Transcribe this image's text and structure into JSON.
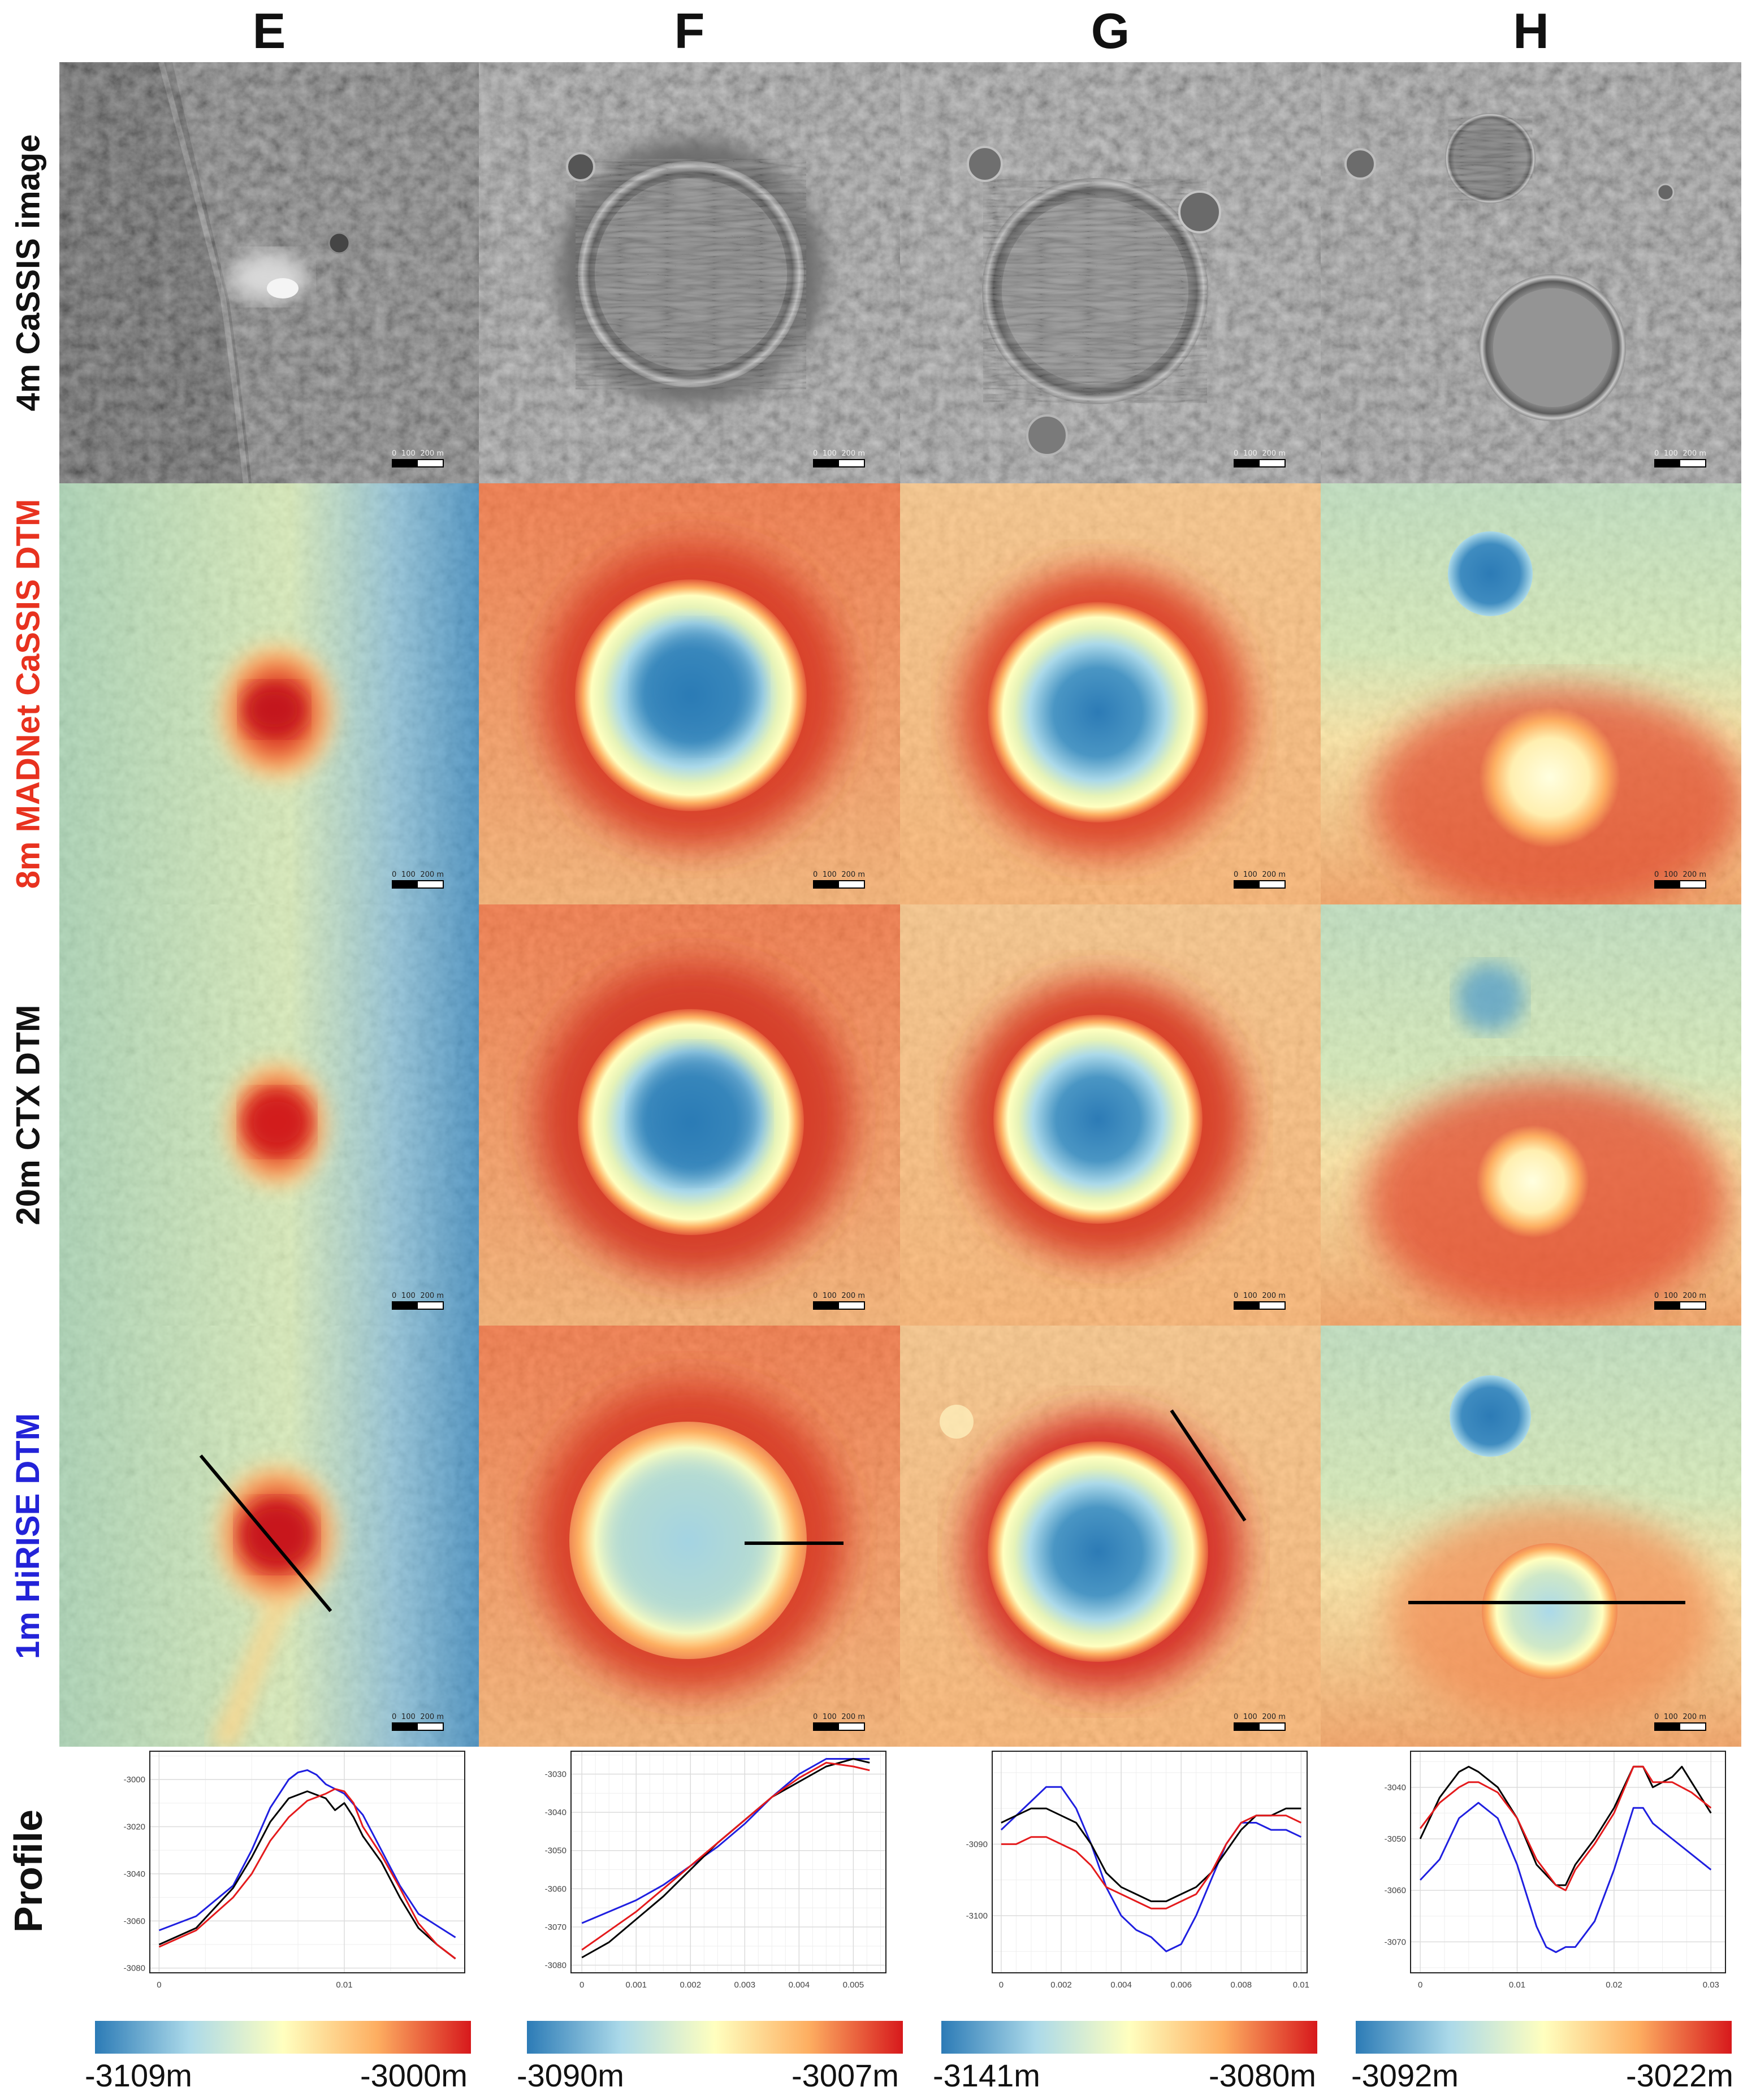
{
  "columns": [
    "E",
    "F",
    "G",
    "H"
  ],
  "rows": [
    {
      "label_prefix": "4m ",
      "label_main": "CaSSIS image",
      "label_color": "#111111"
    },
    {
      "label_prefix": "8m  ",
      "label_main": "MADNet CaSSIS DTM",
      "label_color": "#e8321f"
    },
    {
      "label_prefix": "20m ",
      "label_main": "CTX DTM",
      "label_color": "#111111"
    },
    {
      "label_prefix": "1m ",
      "label_main": "HiRISE DTM",
      "label_color": "#2323d8"
    },
    {
      "label_prefix": "",
      "label_main": "Profile",
      "label_color": "#111111"
    }
  ],
  "scale_bar": {
    "labels": [
      "0",
      "100",
      "200 m"
    ]
  },
  "profile_series_colors": {
    "cassis": "#e41a1c",
    "ctx": "#000000",
    "hirise": "#1f1fe0"
  },
  "colorbar": {
    "stops": [
      "#2c7bb6",
      "#abd9e9",
      "#ffffbf",
      "#fdae61",
      "#d7191c"
    ]
  },
  "chart_data": [
    {
      "type": "line",
      "panel": "E",
      "xlim": [
        -0.0005,
        0.0165
      ],
      "ylim": [
        -3082,
        -2988
      ],
      "xticks": [
        "0",
        "0.01"
      ],
      "xtick_values": [
        0,
        0.01
      ],
      "yticks": [
        "-3000",
        "-3020",
        "-3040",
        "-3060",
        "-3080"
      ],
      "ytick_values": [
        -3000,
        -3020,
        -3040,
        -3060,
        -3080
      ],
      "series": [
        {
          "color": "#1f1fe0",
          "x": [
            0,
            0.002,
            0.004,
            0.005,
            0.006,
            0.007,
            0.0075,
            0.008,
            0.0085,
            0.009,
            0.01,
            0.011,
            0.012,
            0.013,
            0.014,
            0.015,
            0.016
          ],
          "y": [
            -3064,
            -3058,
            -3045,
            -3030,
            -3012,
            -3000,
            -2997,
            -2996,
            -2998,
            -3002,
            -3006,
            -3015,
            -3030,
            -3045,
            -3057,
            -3062,
            -3067
          ]
        },
        {
          "color": "#000000",
          "x": [
            0,
            0.002,
            0.004,
            0.005,
            0.006,
            0.007,
            0.008,
            0.009,
            0.0095,
            0.01,
            0.0105,
            0.011,
            0.012,
            0.013,
            0.014,
            0.015,
            0.016
          ],
          "y": [
            -3070,
            -3063,
            -3046,
            -3033,
            -3018,
            -3008,
            -3005,
            -3008,
            -3013,
            -3010,
            -3016,
            -3024,
            -3035,
            -3050,
            -3063,
            -3070,
            -3076
          ]
        },
        {
          "color": "#e41a1c",
          "x": [
            0,
            0.002,
            0.004,
            0.005,
            0.006,
            0.007,
            0.008,
            0.009,
            0.0095,
            0.01,
            0.0105,
            0.011,
            0.012,
            0.013,
            0.014,
            0.015,
            0.016
          ],
          "y": [
            -3071,
            -3064,
            -3050,
            -3040,
            -3026,
            -3016,
            -3009,
            -3006,
            -3004,
            -3005,
            -3010,
            -3020,
            -3032,
            -3046,
            -3061,
            -3070,
            -3076
          ]
        }
      ]
    },
    {
      "type": "line",
      "panel": "F",
      "xlim": [
        -0.0002,
        0.0056
      ],
      "ylim": [
        -3082,
        -3024
      ],
      "xticks": [
        "0",
        "0.001",
        "0.002",
        "0.003",
        "0.004",
        "0.005"
      ],
      "xtick_values": [
        0,
        0.001,
        0.002,
        0.003,
        0.004,
        0.005
      ],
      "yticks": [
        "-3030",
        "-3040",
        "-3050",
        "-3060",
        "-3070",
        "-3080"
      ],
      "ytick_values": [
        -3030,
        -3040,
        -3050,
        -3060,
        -3070,
        -3080
      ],
      "series": [
        {
          "color": "#1f1fe0",
          "x": [
            0,
            0.0005,
            0.001,
            0.0015,
            0.002,
            0.0025,
            0.003,
            0.0035,
            0.004,
            0.0045,
            0.005,
            0.0053
          ],
          "y": [
            -3069,
            -3066,
            -3063,
            -3059,
            -3054,
            -3049,
            -3043,
            -3036,
            -3030,
            -3026,
            -3026,
            -3026
          ]
        },
        {
          "color": "#000000",
          "x": [
            0,
            0.0005,
            0.001,
            0.0015,
            0.002,
            0.0025,
            0.003,
            0.0035,
            0.004,
            0.0045,
            0.005,
            0.0053
          ],
          "y": [
            -3078,
            -3074,
            -3068,
            -3062,
            -3055,
            -3048,
            -3042,
            -3036,
            -3032,
            -3028,
            -3026,
            -3027
          ]
        },
        {
          "color": "#e41a1c",
          "x": [
            0,
            0.0005,
            0.001,
            0.0015,
            0.002,
            0.0025,
            0.003,
            0.0035,
            0.004,
            0.0045,
            0.005,
            0.0053
          ],
          "y": [
            -3076,
            -3071,
            -3066,
            -3060,
            -3054,
            -3048,
            -3042,
            -3036,
            -3031,
            -3027,
            -3028,
            -3029
          ]
        }
      ]
    },
    {
      "type": "line",
      "panel": "G",
      "xlim": [
        -0.0003,
        0.0102
      ],
      "ylim": [
        -3108,
        -3077
      ],
      "xticks": [
        "0",
        "0.002",
        "0.004",
        "0.006",
        "0.008",
        "0.01"
      ],
      "xtick_values": [
        0,
        0.002,
        0.004,
        0.006,
        0.008,
        0.01
      ],
      "yticks": [
        "-3090",
        "-3100"
      ],
      "ytick_values": [
        -3090,
        -3100
      ],
      "series": [
        {
          "color": "#1f1fe0",
          "x": [
            0,
            0.0005,
            0.001,
            0.0015,
            0.002,
            0.0025,
            0.003,
            0.0035,
            0.004,
            0.0045,
            0.005,
            0.0055,
            0.006,
            0.0065,
            0.007,
            0.0075,
            0.008,
            0.0085,
            0.009,
            0.0095,
            0.01
          ],
          "y": [
            -3088,
            -3086,
            -3084,
            -3082,
            -3082,
            -3085,
            -3090,
            -3096,
            -3100,
            -3102,
            -3103,
            -3105,
            -3104,
            -3100,
            -3095,
            -3090,
            -3087,
            -3087,
            -3088,
            -3088,
            -3089
          ]
        },
        {
          "color": "#000000",
          "x": [
            0,
            0.0005,
            0.001,
            0.0015,
            0.002,
            0.0025,
            0.003,
            0.0035,
            0.004,
            0.0045,
            0.005,
            0.0055,
            0.006,
            0.0065,
            0.007,
            0.0075,
            0.008,
            0.0085,
            0.009,
            0.0095,
            0.01
          ],
          "y": [
            -3087,
            -3086,
            -3085,
            -3085,
            -3086,
            -3087,
            -3090,
            -3094,
            -3096,
            -3097,
            -3098,
            -3098,
            -3097,
            -3096,
            -3094,
            -3091,
            -3088,
            -3086,
            -3086,
            -3085,
            -3085
          ]
        },
        {
          "color": "#e41a1c",
          "x": [
            0,
            0.0005,
            0.001,
            0.0015,
            0.002,
            0.0025,
            0.003,
            0.0035,
            0.004,
            0.0045,
            0.005,
            0.0055,
            0.006,
            0.0065,
            0.007,
            0.0075,
            0.008,
            0.0085,
            0.009,
            0.0095,
            0.01
          ],
          "y": [
            -3090,
            -3090,
            -3089,
            -3089,
            -3090,
            -3091,
            -3093,
            -3096,
            -3097,
            -3098,
            -3099,
            -3099,
            -3098,
            -3097,
            -3094,
            -3090,
            -3087,
            -3086,
            -3086,
            -3086,
            -3087
          ]
        }
      ]
    },
    {
      "type": "line",
      "panel": "H",
      "xlim": [
        -0.001,
        0.0315
      ],
      "ylim": [
        -3076,
        -3033
      ],
      "xticks": [
        "0",
        "0.01",
        "0.02",
        "0.03"
      ],
      "xtick_values": [
        0,
        0.01,
        0.02,
        0.03
      ],
      "yticks": [
        "-3040",
        "-3050",
        "-3060",
        "-3070"
      ],
      "ytick_values": [
        -3040,
        -3050,
        -3060,
        -3070
      ],
      "series": [
        {
          "color": "#000000",
          "x": [
            0,
            0.002,
            0.004,
            0.005,
            0.006,
            0.008,
            0.01,
            0.012,
            0.014,
            0.015,
            0.016,
            0.018,
            0.02,
            0.022,
            0.023,
            0.024,
            0.026,
            0.027,
            0.028,
            0.03
          ],
          "y": [
            -3050,
            -3042,
            -3037,
            -3036,
            -3037,
            -3040,
            -3046,
            -3055,
            -3059,
            -3059,
            -3055,
            -3050,
            -3044,
            -3036,
            -3036,
            -3040,
            -3038,
            -3036,
            -3039,
            -3045
          ]
        },
        {
          "color": "#e41a1c",
          "x": [
            0,
            0.002,
            0.004,
            0.005,
            0.006,
            0.008,
            0.01,
            0.012,
            0.014,
            0.015,
            0.016,
            0.018,
            0.02,
            0.022,
            0.023,
            0.024,
            0.026,
            0.028,
            0.03
          ],
          "y": [
            -3048,
            -3043,
            -3040,
            -3039,
            -3039,
            -3041,
            -3046,
            -3054,
            -3059,
            -3060,
            -3056,
            -3051,
            -3045,
            -3036,
            -3036,
            -3039,
            -3039,
            -3041,
            -3044
          ]
        },
        {
          "color": "#1f1fe0",
          "x": [
            0,
            0.002,
            0.004,
            0.006,
            0.008,
            0.01,
            0.012,
            0.013,
            0.014,
            0.015,
            0.016,
            0.018,
            0.02,
            0.022,
            0.023,
            0.024,
            0.026,
            0.028,
            0.03
          ],
          "y": [
            -3058,
            -3054,
            -3046,
            -3043,
            -3046,
            -3055,
            -3067,
            -3071,
            -3072,
            -3071,
            -3071,
            -3066,
            -3056,
            -3044,
            -3044,
            -3047,
            -3050,
            -3053,
            -3056
          ]
        }
      ]
    }
  ],
  "colorbars": [
    {
      "panel": "E",
      "min_label": "-3109m",
      "max_label": "-3000m"
    },
    {
      "panel": "F",
      "min_label": "-3090m",
      "max_label": "-3007m"
    },
    {
      "panel": "G",
      "min_label": "-3141m",
      "max_label": "-3080m"
    },
    {
      "panel": "H",
      "min_label": "-3092m",
      "max_label": "-3022m"
    }
  ]
}
